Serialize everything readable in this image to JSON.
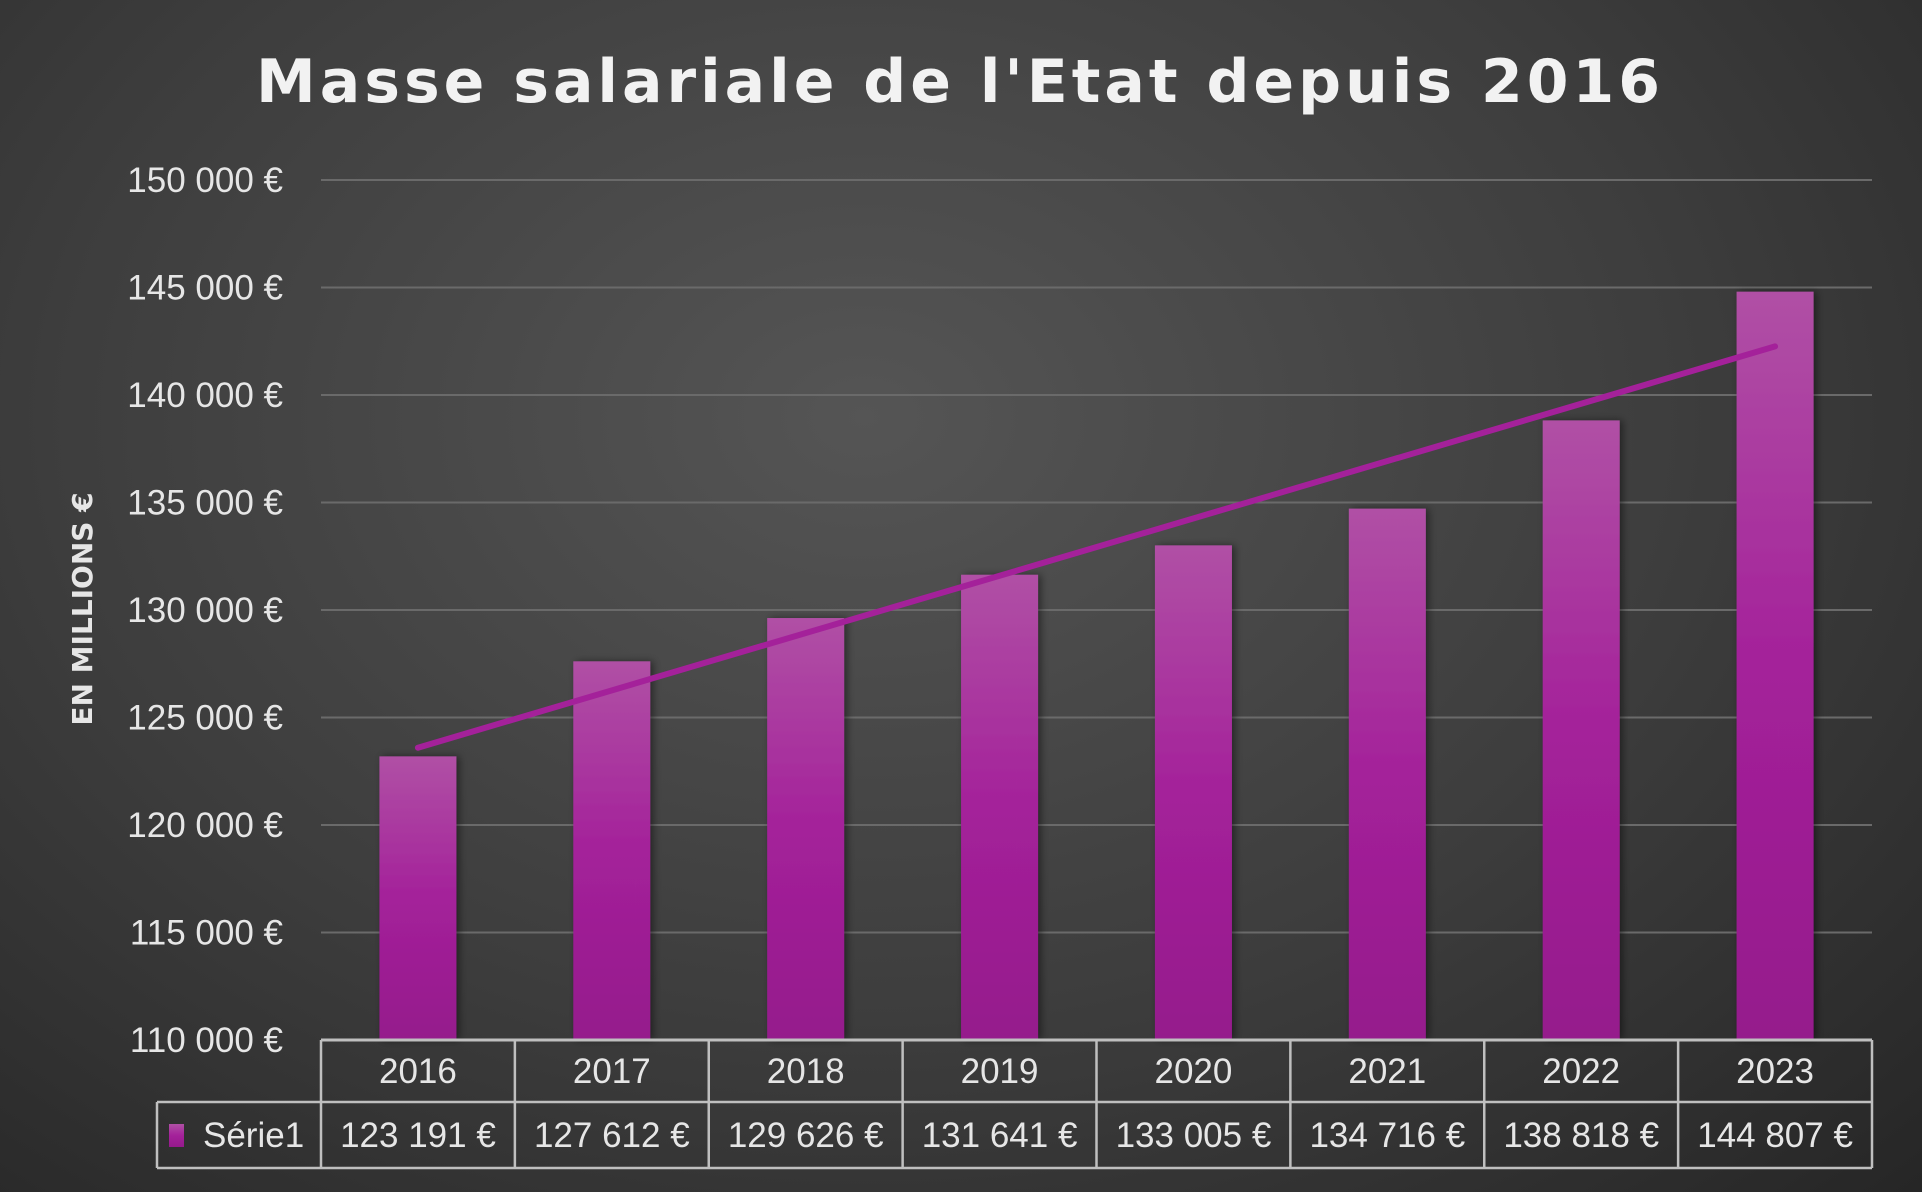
{
  "chart_data": {
    "type": "bar",
    "title": "Masse salariale de l'Etat depuis 2016",
    "xlabel": "",
    "ylabel": "EN MILLIONS €",
    "ylim": [
      110000,
      150000
    ],
    "ytick_step": 5000,
    "ytick_labels": [
      "110 000 €",
      "115 000 €",
      "120 000 €",
      "125 000 €",
      "130 000 €",
      "135 000 €",
      "140 000 €",
      "145 000 €",
      "150 000 €"
    ],
    "categories": [
      "2016",
      "2017",
      "2018",
      "2019",
      "2020",
      "2021",
      "2022",
      "2023"
    ],
    "series": [
      {
        "name": "Série1",
        "values": [
          123191,
          127612,
          129626,
          131641,
          133005,
          134716,
          138818,
          144807
        ],
        "value_labels": [
          "123 191 €",
          "127 612 €",
          "129 626 €",
          "131 641 €",
          "133 005 €",
          "134 716 €",
          "138 818 €",
          "144 807 €"
        ],
        "color": "#a4219a"
      }
    ],
    "trendline": {
      "type": "linear",
      "color": "#a4219a"
    },
    "grid": true,
    "legend": "data-table"
  }
}
